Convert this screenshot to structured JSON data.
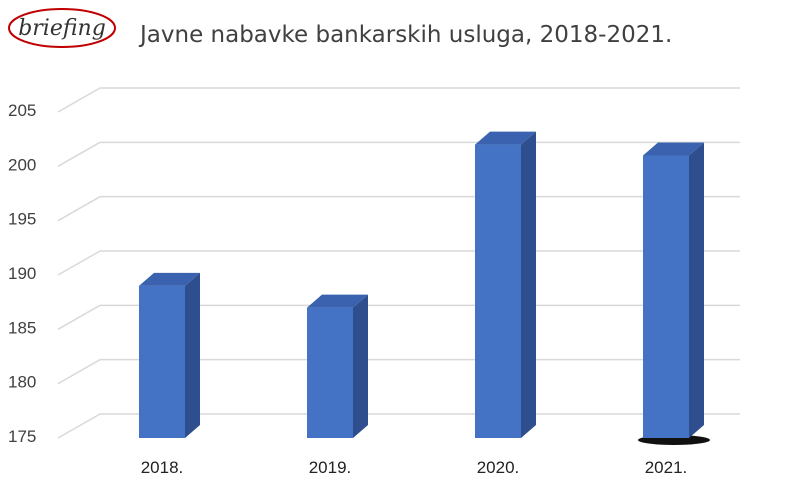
{
  "header": {
    "logo_text": "briefing",
    "title": "Javne nabavke bankarskih usluga, 2018-2021."
  },
  "colors": {
    "bar_front": "#4472C4",
    "bar_side": "#2E4E8E",
    "bar_top": "#3A62AE",
    "grid": "#D9D9D9",
    "logo": "#C00000"
  },
  "chart_data": {
    "type": "bar",
    "title": "Javne nabavke bankarskih usluga, 2018-2021.",
    "categories": [
      "2018.",
      "2019.",
      "2020.",
      "2021."
    ],
    "values": [
      189,
      187,
      202,
      201
    ],
    "ylim": [
      175,
      205
    ],
    "yticks": [
      175,
      180,
      185,
      190,
      195,
      200,
      205
    ],
    "xlabel": "",
    "ylabel": "",
    "grid": true,
    "legend": "none",
    "style": "3d-column"
  }
}
